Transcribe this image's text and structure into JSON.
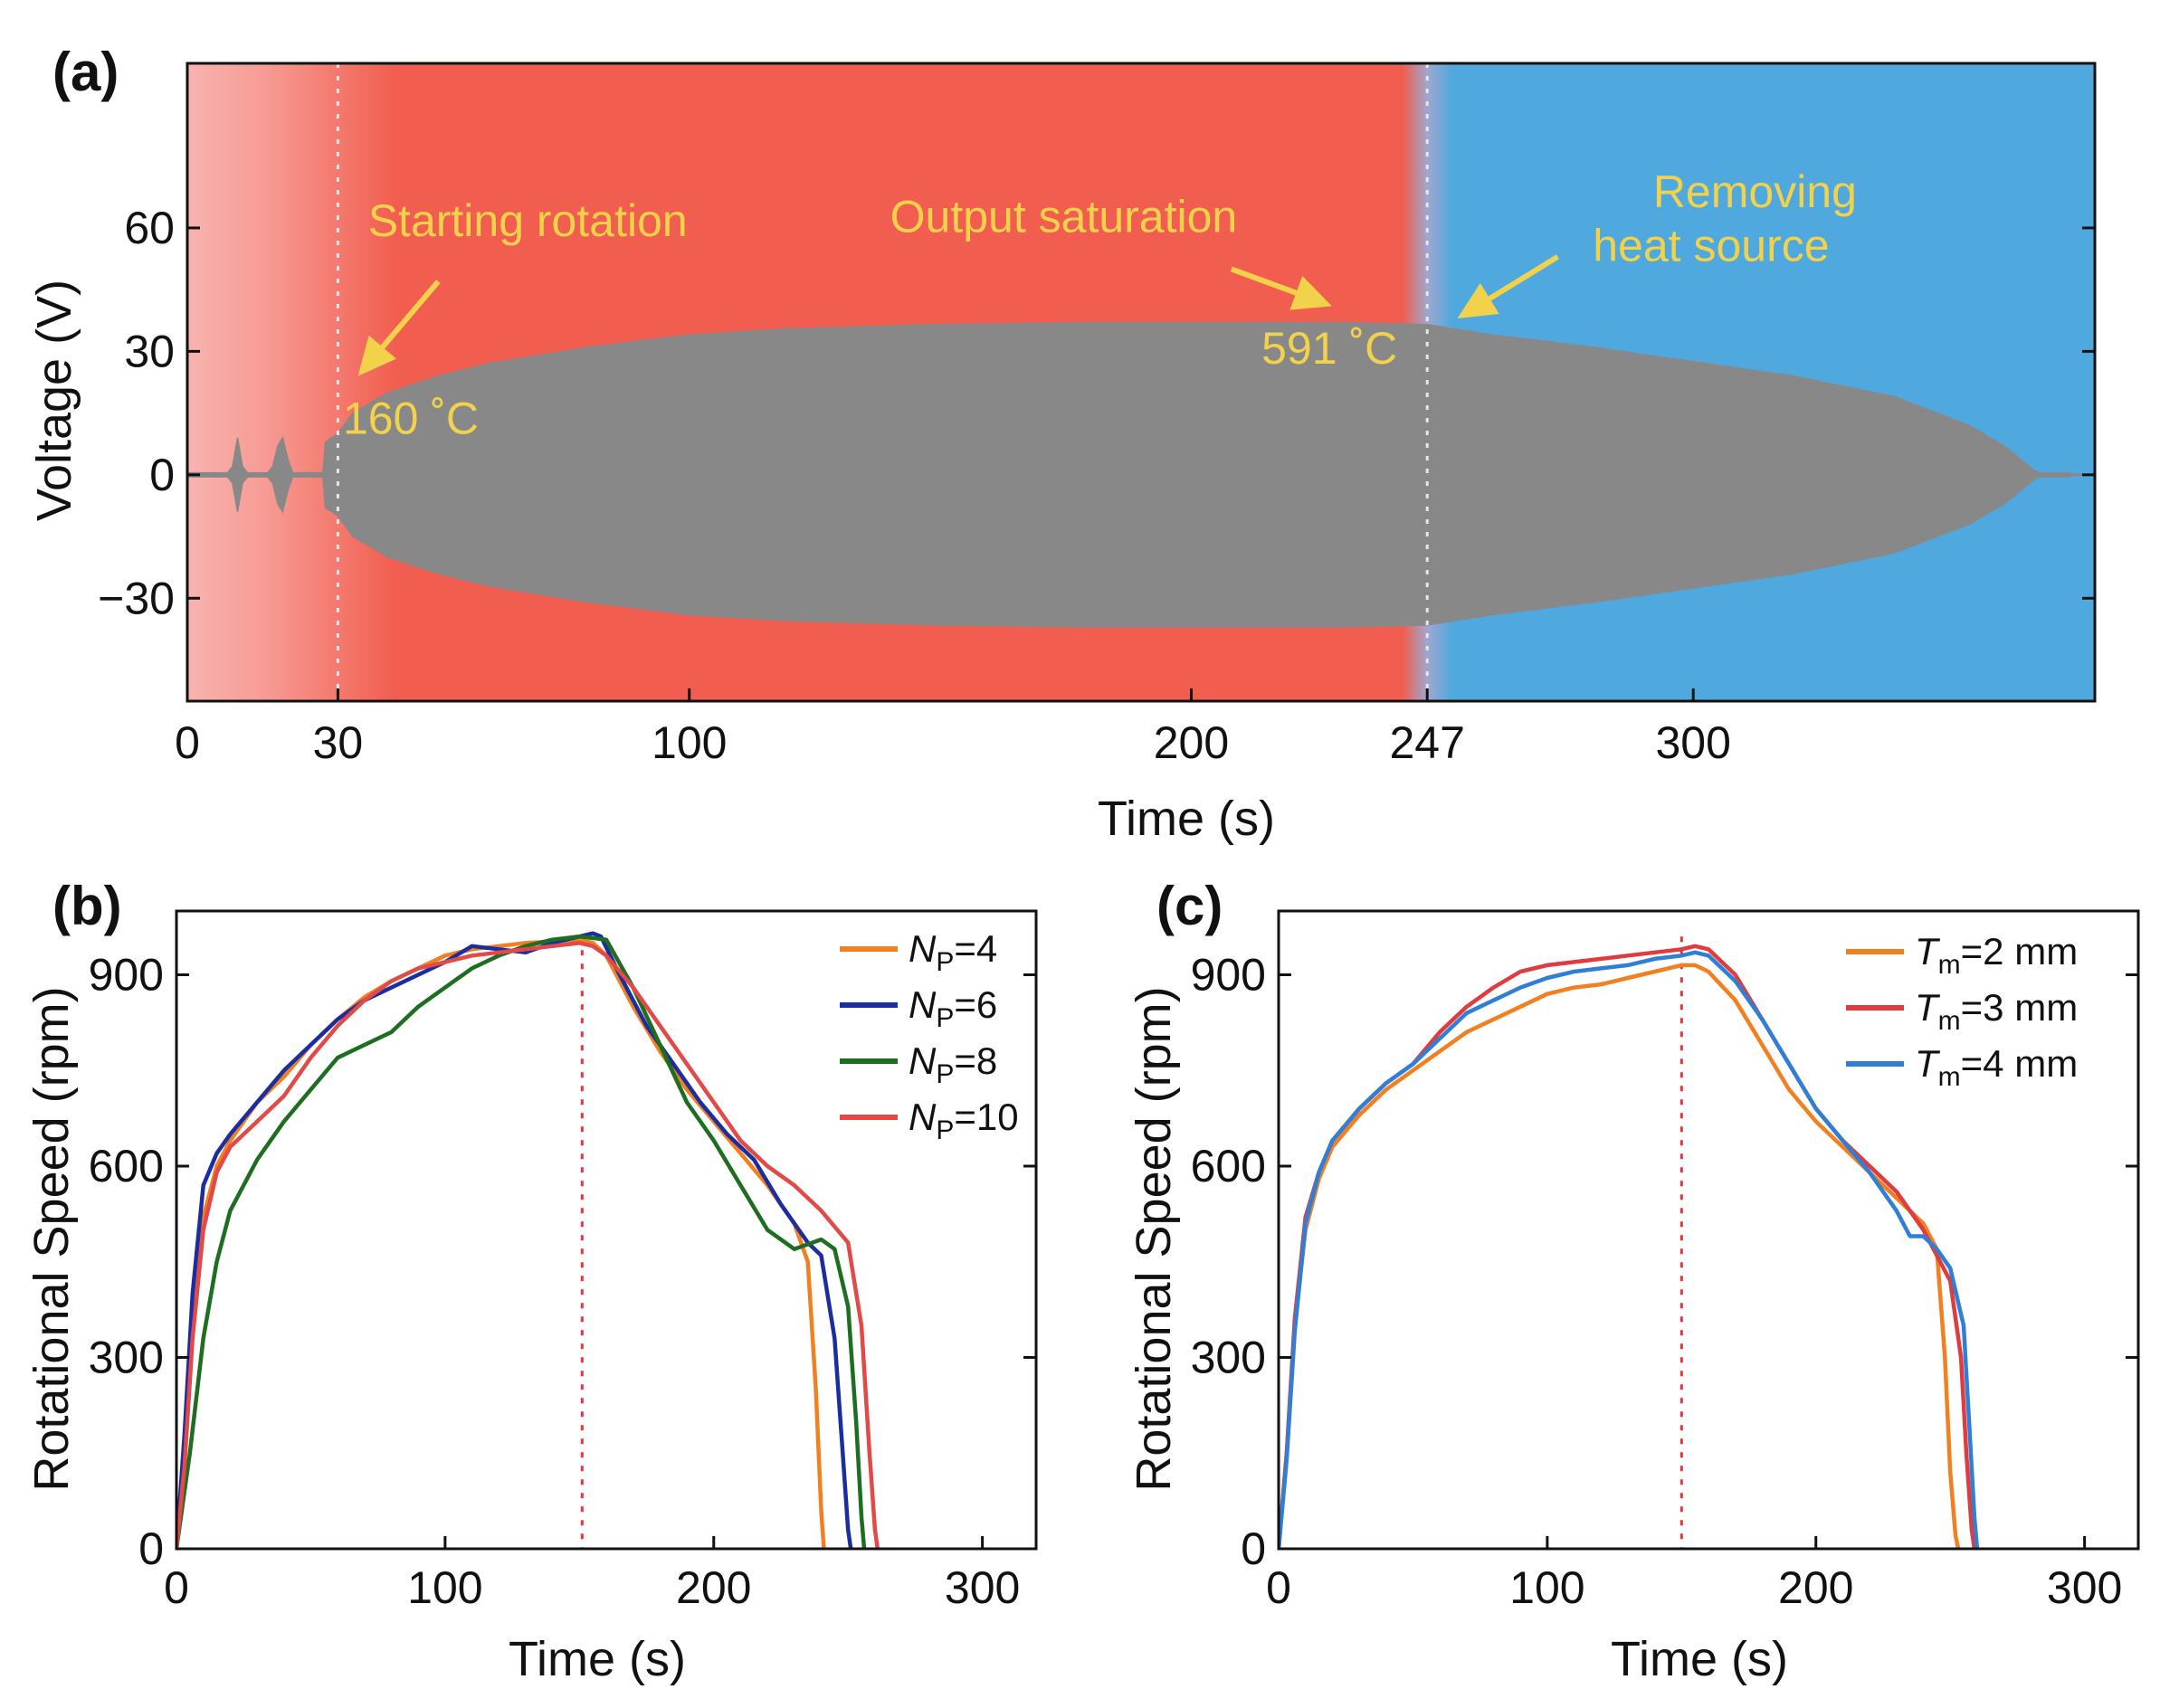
{
  "chart_data": [
    {
      "id": "a",
      "type": "area",
      "panel_label": "(a)",
      "xlabel": "Time (s)",
      "ylabel": "Voltage (V)",
      "xlim": [
        0,
        380
      ],
      "ylim": [
        -55,
        100
      ],
      "xticks": [
        0,
        30,
        100,
        200,
        247,
        300
      ],
      "yticks": [
        -30,
        0,
        30,
        60
      ],
      "ytick_labels": [
        "−30",
        "0",
        "30",
        "60"
      ],
      "grid": false,
      "background_regions": [
        {
          "x": [
            0,
            247
          ],
          "color": "#f15d4e"
        },
        {
          "x": [
            247,
            380
          ],
          "color": "#50a9de"
        }
      ],
      "vlines": [
        30,
        247
      ],
      "series": [
        {
          "color": "#888888",
          "x": [
            0,
            5,
            8,
            9,
            10,
            11,
            12,
            16,
            17,
            18,
            19,
            20,
            21,
            22,
            27,
            27.5,
            30,
            33,
            40,
            50,
            60,
            80,
            100,
            120,
            150,
            180,
            200,
            230,
            247,
            260,
            280,
            300,
            320,
            340,
            355,
            362,
            366,
            368,
            369,
            375,
            375.5
          ],
          "upper": [
            0.5,
            0.5,
            0.5,
            2,
            9,
            2,
            0.5,
            0.5,
            2,
            7,
            9,
            4,
            0.5,
            0.5,
            0.5,
            8,
            10,
            15,
            20,
            24,
            27,
            31,
            34,
            35.5,
            36.5,
            37,
            37,
            37,
            36.5,
            34,
            31,
            27.5,
            24,
            19,
            12,
            7,
            3,
            1,
            0.5,
            0.5,
            0
          ],
          "lower": [
            -0.5,
            -0.5,
            -0.5,
            -2,
            -9,
            -2,
            -0.5,
            -0.5,
            -2,
            -7,
            -9,
            -4,
            -0.5,
            -0.5,
            -0.5,
            -8,
            -10,
            -15,
            -20,
            -24,
            -27,
            -31,
            -34,
            -35.5,
            -36.5,
            -37,
            -37,
            -37,
            -36.5,
            -34,
            -31,
            -27.5,
            -24,
            -19,
            -12,
            -7,
            -3,
            -1,
            -0.5,
            -0.5,
            0
          ]
        }
      ],
      "annotations": [
        {
          "text": "Starting rotation",
          "x": 36,
          "y": 58
        },
        {
          "text": "160 ˚C",
          "x": 31,
          "y": 10
        },
        {
          "text": "Output saturation",
          "x": 140,
          "y": 59
        },
        {
          "text": "591 ˚C",
          "x": 214,
          "y": 27
        },
        {
          "text": "Removing",
          "x": 292,
          "y": 65
        },
        {
          "text": "heat source",
          "x": 280,
          "y": 52
        }
      ]
    },
    {
      "id": "b",
      "type": "line",
      "panel_label": "(b)",
      "xlabel": "Time (s)",
      "ylabel": "Rotational Speed (rpm)",
      "xlim": [
        0,
        320
      ],
      "ylim": [
        0,
        1000
      ],
      "xticks": [
        0,
        100,
        200,
        300
      ],
      "yticks": [
        0,
        300,
        600,
        900
      ],
      "grid": false,
      "legend": "top-right",
      "vline": 151,
      "series": [
        {
          "var": "N",
          "sub": "P",
          "value": "=4",
          "color": "#f28021",
          "x": [
            0,
            3,
            6,
            10,
            15,
            20,
            30,
            40,
            50,
            60,
            70,
            80,
            90,
            100,
            110,
            120,
            130,
            140,
            150,
            155,
            160,
            170,
            180,
            190,
            200,
            210,
            220,
            230,
            235,
            238,
            240,
            241
          ],
          "y": [
            0,
            150,
            350,
            520,
            600,
            640,
            700,
            740,
            790,
            830,
            865,
            890,
            910,
            930,
            940,
            945,
            950,
            952,
            955,
            950,
            930,
            850,
            780,
            720,
            670,
            620,
            570,
            510,
            450,
            250,
            60,
            0
          ]
        },
        {
          "var": "N",
          "sub": "P",
          "value": "=6",
          "color": "#1a2ea0",
          "x": [
            0,
            3,
            6,
            10,
            15,
            20,
            30,
            40,
            50,
            60,
            70,
            80,
            90,
            100,
            110,
            120,
            130,
            140,
            150,
            155,
            158,
            165,
            175,
            185,
            195,
            205,
            215,
            225,
            235,
            240,
            245,
            248,
            250,
            251
          ],
          "y": [
            0,
            180,
            400,
            570,
            620,
            650,
            700,
            750,
            790,
            830,
            860,
            880,
            900,
            920,
            945,
            940,
            935,
            950,
            960,
            965,
            960,
            900,
            820,
            760,
            700,
            650,
            610,
            540,
            480,
            460,
            330,
            150,
            30,
            0
          ]
        },
        {
          "var": "N",
          "sub": "P",
          "value": "=8",
          "color": "#1e6e21",
          "x": [
            0,
            5,
            10,
            15,
            20,
            30,
            40,
            50,
            60,
            70,
            80,
            90,
            100,
            110,
            120,
            130,
            140,
            150,
            160,
            170,
            180,
            190,
            200,
            210,
            220,
            230,
            240,
            245,
            250,
            253,
            255,
            256
          ],
          "y": [
            0,
            150,
            330,
            450,
            530,
            610,
            670,
            720,
            770,
            790,
            810,
            850,
            880,
            910,
            930,
            945,
            955,
            960,
            955,
            880,
            790,
            700,
            640,
            570,
            500,
            470,
            485,
            470,
            380,
            200,
            50,
            0
          ]
        },
        {
          "var": "N",
          "sub": "P",
          "value": "=10",
          "color": "#e24a48",
          "x": [
            0,
            3,
            6,
            10,
            15,
            20,
            30,
            40,
            50,
            60,
            70,
            80,
            90,
            100,
            110,
            120,
            130,
            140,
            150,
            155,
            160,
            170,
            180,
            190,
            200,
            210,
            220,
            230,
            240,
            250,
            255,
            258,
            260,
            261
          ],
          "y": [
            0,
            130,
            330,
            500,
            590,
            630,
            670,
            710,
            770,
            820,
            860,
            890,
            910,
            920,
            930,
            935,
            940,
            945,
            950,
            945,
            930,
            880,
            820,
            760,
            700,
            640,
            600,
            570,
            530,
            480,
            350,
            150,
            30,
            0
          ]
        }
      ]
    },
    {
      "id": "c",
      "type": "line",
      "panel_label": "(c)",
      "xlabel": "Time (s)",
      "ylabel": "Rotational Speed (rpm)",
      "xlim": [
        0,
        320
      ],
      "ylim": [
        0,
        1000
      ],
      "xticks": [
        0,
        100,
        200,
        300
      ],
      "yticks": [
        0,
        300,
        600,
        900
      ],
      "grid": false,
      "legend": "top-right",
      "vline": 150,
      "series": [
        {
          "var": "T",
          "sub": "m",
          "value": "=2 mm",
          "color": "#f28021",
          "x": [
            0,
            3,
            6,
            10,
            15,
            20,
            30,
            40,
            50,
            60,
            70,
            80,
            90,
            100,
            110,
            120,
            130,
            140,
            150,
            155,
            160,
            170,
            180,
            190,
            200,
            210,
            220,
            230,
            240,
            245,
            248,
            250,
            252,
            253
          ],
          "y": [
            0,
            150,
            350,
            500,
            580,
            630,
            680,
            720,
            750,
            780,
            810,
            830,
            850,
            870,
            880,
            885,
            895,
            905,
            915,
            915,
            905,
            860,
            790,
            720,
            670,
            630,
            590,
            550,
            510,
            470,
            300,
            120,
            20,
            0
          ]
        },
        {
          "var": "T",
          "sub": "m",
          "value": "=3 mm",
          "color": "#e03b3e",
          "x": [
            0,
            3,
            6,
            10,
            15,
            20,
            30,
            40,
            50,
            60,
            70,
            80,
            90,
            100,
            110,
            120,
            130,
            140,
            150,
            155,
            160,
            170,
            180,
            190,
            200,
            210,
            220,
            230,
            240,
            250,
            254,
            256,
            258,
            259
          ],
          "y": [
            0,
            150,
            360,
            520,
            590,
            640,
            690,
            730,
            760,
            810,
            850,
            880,
            905,
            915,
            920,
            925,
            930,
            935,
            940,
            945,
            940,
            900,
            830,
            760,
            690,
            640,
            600,
            560,
            500,
            420,
            300,
            150,
            30,
            0
          ]
        },
        {
          "var": "T",
          "sub": "m",
          "value": "=4 mm",
          "color": "#2f7fd6",
          "x": [
            0,
            3,
            6,
            10,
            15,
            20,
            30,
            40,
            50,
            60,
            70,
            80,
            90,
            100,
            110,
            120,
            130,
            140,
            150,
            155,
            160,
            170,
            180,
            190,
            200,
            210,
            220,
            230,
            235,
            240,
            245,
            250,
            255,
            257,
            259,
            260
          ],
          "y": [
            0,
            140,
            340,
            510,
            590,
            640,
            690,
            730,
            760,
            800,
            840,
            860,
            880,
            895,
            905,
            910,
            915,
            925,
            930,
            935,
            930,
            890,
            830,
            760,
            690,
            640,
            590,
            530,
            490,
            490,
            470,
            440,
            350,
            200,
            50,
            0
          ]
        }
      ]
    }
  ]
}
